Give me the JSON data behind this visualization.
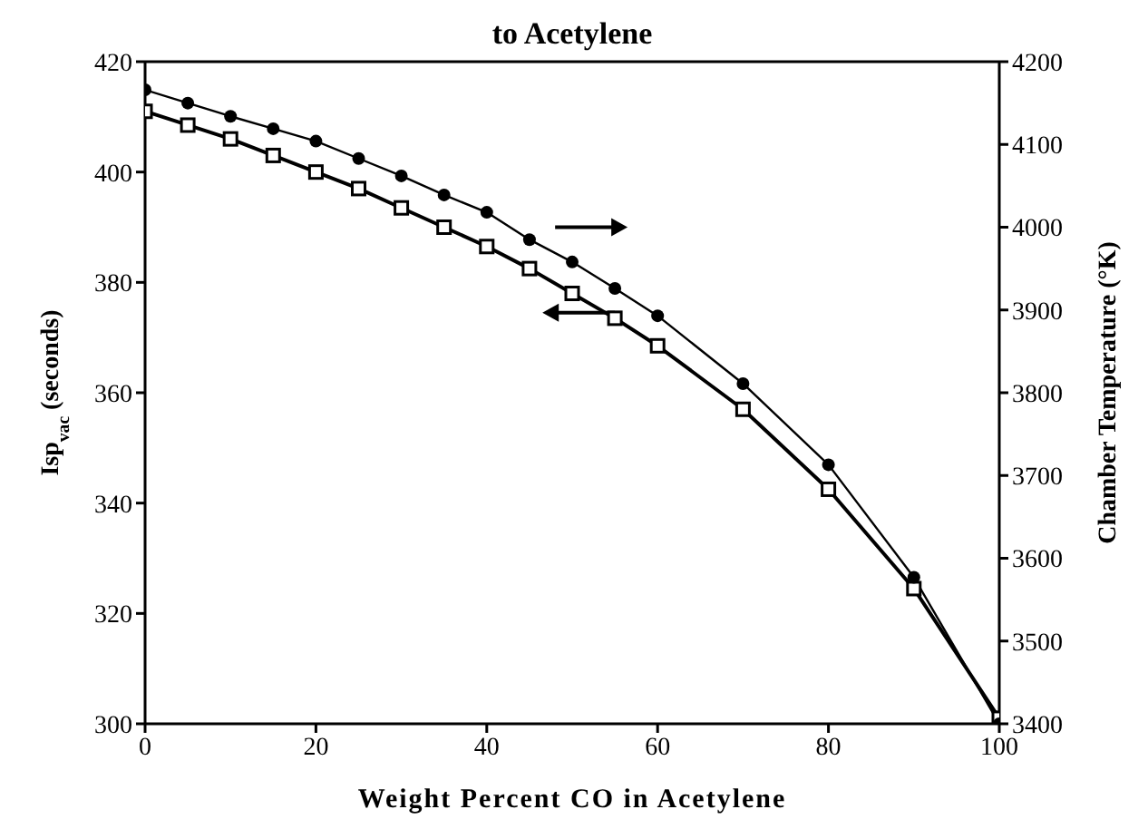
{
  "chart_data": {
    "type": "line",
    "title": "to Acetylene",
    "xlabel": "Weight Percent CO in Acetylene",
    "ylabel": "Isp$_{vac}$ (seconds)",
    "y2label": "Chamber Temperature (°K)",
    "x": [
      0,
      5,
      10,
      15,
      20,
      25,
      30,
      35,
      40,
      45,
      50,
      55,
      60,
      70,
      80,
      90,
      100
    ],
    "series": [
      {
        "color": "#000000",
        "marker": "square",
        "values": [
          411,
          408.5,
          406,
          403,
          400,
          397,
          393.5,
          390,
          386.5,
          382.5,
          378,
          373.5,
          368.5,
          357,
          342.5,
          324.5,
          301
        ]
      },
      {
        "color": "#000000",
        "marker": "circle",
        "axis": "y2",
        "values": [
          4166,
          4150,
          4134,
          4119,
          4104,
          4083,
          4062,
          4039,
          4018,
          3985,
          3958,
          3926,
          3893,
          3811,
          3713,
          3577,
          3400
        ]
      }
    ],
    "xlim": [
      0,
      100
    ],
    "xticks": [
      0,
      20,
      40,
      60,
      80,
      100
    ],
    "ylim": [
      300,
      420
    ],
    "yticks": [
      300,
      320,
      340,
      360,
      380,
      400,
      420
    ],
    "y2lim": [
      3400,
      4200
    ],
    "y2ticks": [
      3400,
      3500,
      3600,
      3700,
      3800,
      3900,
      4000,
      4100,
      4200
    ],
    "grid": false,
    "legend": false,
    "line_style": "solid"
  }
}
